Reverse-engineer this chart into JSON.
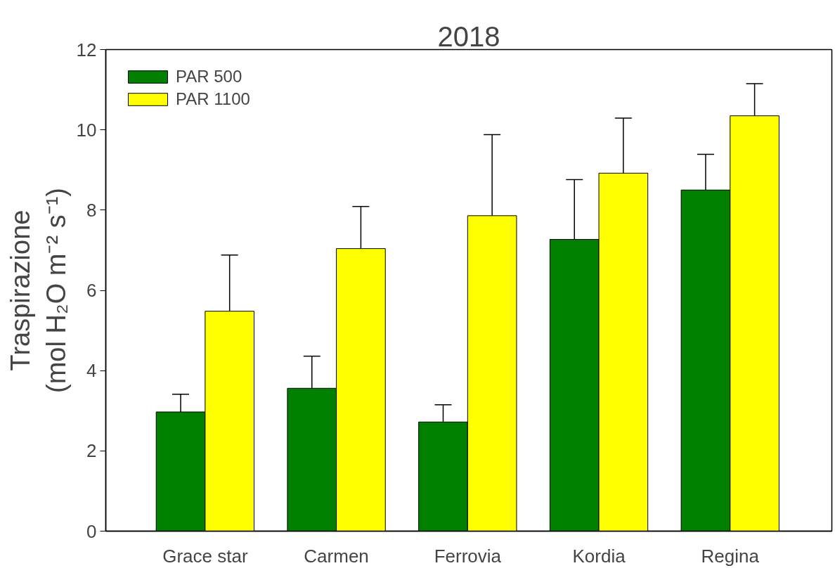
{
  "chart_data": {
    "type": "bar",
    "title": "2018",
    "ylabel": "Traspirazione\n(mol H₂O m⁻² s⁻¹)",
    "categories": [
      "Grace star",
      "Carmen",
      "Ferrovia",
      "Kordia",
      "Regina"
    ],
    "series": [
      {
        "name": "PAR 500",
        "color": "#007f00",
        "values": [
          2.97,
          3.56,
          2.72,
          7.27,
          8.5
        ],
        "errors": [
          [
            2.97,
            3.41
          ],
          [
            3.56,
            4.36
          ],
          [
            2.72,
            3.15
          ],
          [
            7.27,
            8.76
          ],
          [
            8.5,
            9.39
          ]
        ]
      },
      {
        "name": "PAR 1100",
        "color": "#ffff00",
        "values": [
          5.48,
          7.04,
          7.86,
          8.92,
          10.35
        ],
        "errors": [
          [
            5.48,
            6.88
          ],
          [
            7.04,
            8.09
          ],
          [
            7.86,
            9.88
          ],
          [
            8.92,
            10.29
          ],
          [
            10.35,
            11.15
          ]
        ]
      }
    ],
    "ylim": [
      0,
      12
    ],
    "yticks": [
      0,
      2,
      4,
      6,
      8,
      10,
      12
    ],
    "legend": "top left",
    "grid": false
  }
}
